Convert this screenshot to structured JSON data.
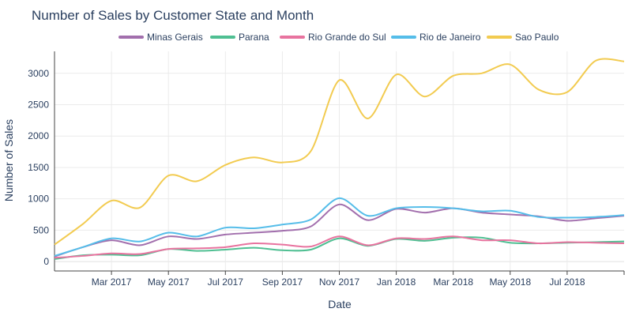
{
  "chart_data": {
    "type": "line",
    "title": "Number of Sales by Customer State and Month",
    "xlabel": "Date",
    "ylabel": "Number of Sales",
    "x": [
      "2017-01",
      "2017-02",
      "2017-03",
      "2017-04",
      "2017-05",
      "2017-06",
      "2017-07",
      "2017-08",
      "2017-09",
      "2017-10",
      "2017-11",
      "2017-12",
      "2018-01",
      "2018-02",
      "2018-03",
      "2018-04",
      "2018-05",
      "2018-06",
      "2018-07",
      "2018-08",
      "2018-09"
    ],
    "x_ticks": [
      "Mar 2017",
      "May 2017",
      "Jul 2017",
      "Sep 2017",
      "Nov 2017",
      "Jan 2018",
      "Mar 2018",
      "May 2018",
      "Jul 2018"
    ],
    "y_ticks": [
      0,
      500,
      1000,
      1500,
      2000,
      2500,
      3000
    ],
    "ylim": [
      -150,
      3350
    ],
    "grid": true,
    "legend_position": "top-center",
    "series": [
      {
        "name": "Minas Gerais",
        "color": "#a26fad",
        "values": [
          80,
          230,
          340,
          260,
          400,
          360,
          430,
          460,
          490,
          560,
          910,
          660,
          840,
          780,
          850,
          780,
          750,
          720,
          650,
          690,
          730
        ]
      },
      {
        "name": "Parana",
        "color": "#4fbf92",
        "values": [
          40,
          100,
          110,
          100,
          200,
          170,
          190,
          220,
          180,
          190,
          370,
          250,
          360,
          330,
          380,
          380,
          300,
          290,
          300,
          310,
          320
        ]
      },
      {
        "name": "Rio Grande do Sul",
        "color": "#e8739f",
        "values": [
          60,
          90,
          130,
          120,
          200,
          210,
          230,
          290,
          270,
          240,
          400,
          260,
          370,
          360,
          400,
          340,
          340,
          290,
          310,
          300,
          290
        ]
      },
      {
        "name": "Rio de Janeiro",
        "color": "#55bde9",
        "values": [
          90,
          230,
          370,
          320,
          460,
          400,
          540,
          530,
          590,
          670,
          1010,
          730,
          850,
          870,
          850,
          800,
          810,
          710,
          700,
          710,
          740
        ]
      },
      {
        "name": "Sao Paulo",
        "color": "#f2cb50",
        "values": [
          270,
          600,
          970,
          860,
          1370,
          1280,
          1540,
          1660,
          1580,
          1760,
          2890,
          2280,
          2980,
          2630,
          2960,
          3000,
          3140,
          2740,
          2700,
          3200,
          3190
        ]
      }
    ]
  }
}
